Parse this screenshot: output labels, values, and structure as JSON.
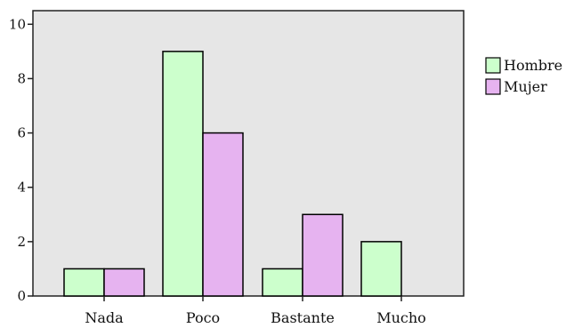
{
  "chart_data": {
    "type": "bar",
    "categories": [
      "Nada",
      "Poco",
      "Bastante",
      "Mucho"
    ],
    "series": [
      {
        "name": "Hombre",
        "values": [
          1,
          9,
          1,
          2
        ],
        "color": "#ccffcc"
      },
      {
        "name": "Mujer",
        "values": [
          1,
          6,
          3,
          0
        ],
        "color": "#e6b3f0"
      }
    ],
    "title": "",
    "xlabel": "",
    "ylabel": "",
    "ylim": [
      0,
      10
    ],
    "yticks": [
      "0",
      "2",
      "4",
      "6",
      "8",
      "10"
    ],
    "grid": false,
    "legend_position": "right",
    "plot_background": "#e6e6e6",
    "bar_outline": "#000000"
  }
}
